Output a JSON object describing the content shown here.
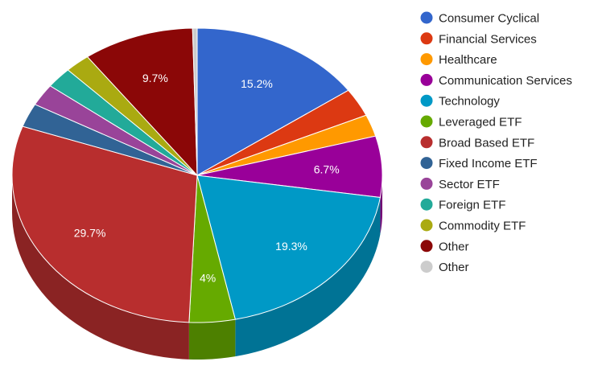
{
  "chart_data": {
    "type": "pie",
    "style": "3d",
    "legend_position": "right",
    "slices": [
      {
        "name": "Consumer Cyclical",
        "value": 15.2,
        "label": "15.2%",
        "color": "#3366cc"
      },
      {
        "name": "Financial Services",
        "value": 3.1,
        "label": "",
        "color": "#dc3912"
      },
      {
        "name": "Healthcare",
        "value": 2.4,
        "label": "",
        "color": "#ff9900"
      },
      {
        "name": "Communication Services",
        "value": 6.7,
        "label": "6.7%",
        "color": "#990099"
      },
      {
        "name": "Technology",
        "value": 19.3,
        "label": "19.3%",
        "color": "#0099c6"
      },
      {
        "name": "Leveraged ETF",
        "value": 4.0,
        "label": "4%",
        "color": "#66aa00"
      },
      {
        "name": "Broad Based ETF",
        "value": 29.7,
        "label": "29.7%",
        "color": "#b82e2e"
      },
      {
        "name": "Fixed Income ETF",
        "value": 2.6,
        "label": "",
        "color": "#316395"
      },
      {
        "name": "Sector ETF",
        "value": 2.4,
        "label": "",
        "color": "#994499"
      },
      {
        "name": "Foreign ETF",
        "value": 2.3,
        "label": "",
        "color": "#22aa99"
      },
      {
        "name": "Commodity ETF",
        "value": 2.2,
        "label": "",
        "color": "#aaaa11"
      },
      {
        "name": "Other",
        "value": 9.7,
        "label": "9.7%",
        "color": "#8b0707"
      },
      {
        "name": "Other",
        "value": 0.4,
        "label": "",
        "color": "#cccccc"
      }
    ]
  }
}
